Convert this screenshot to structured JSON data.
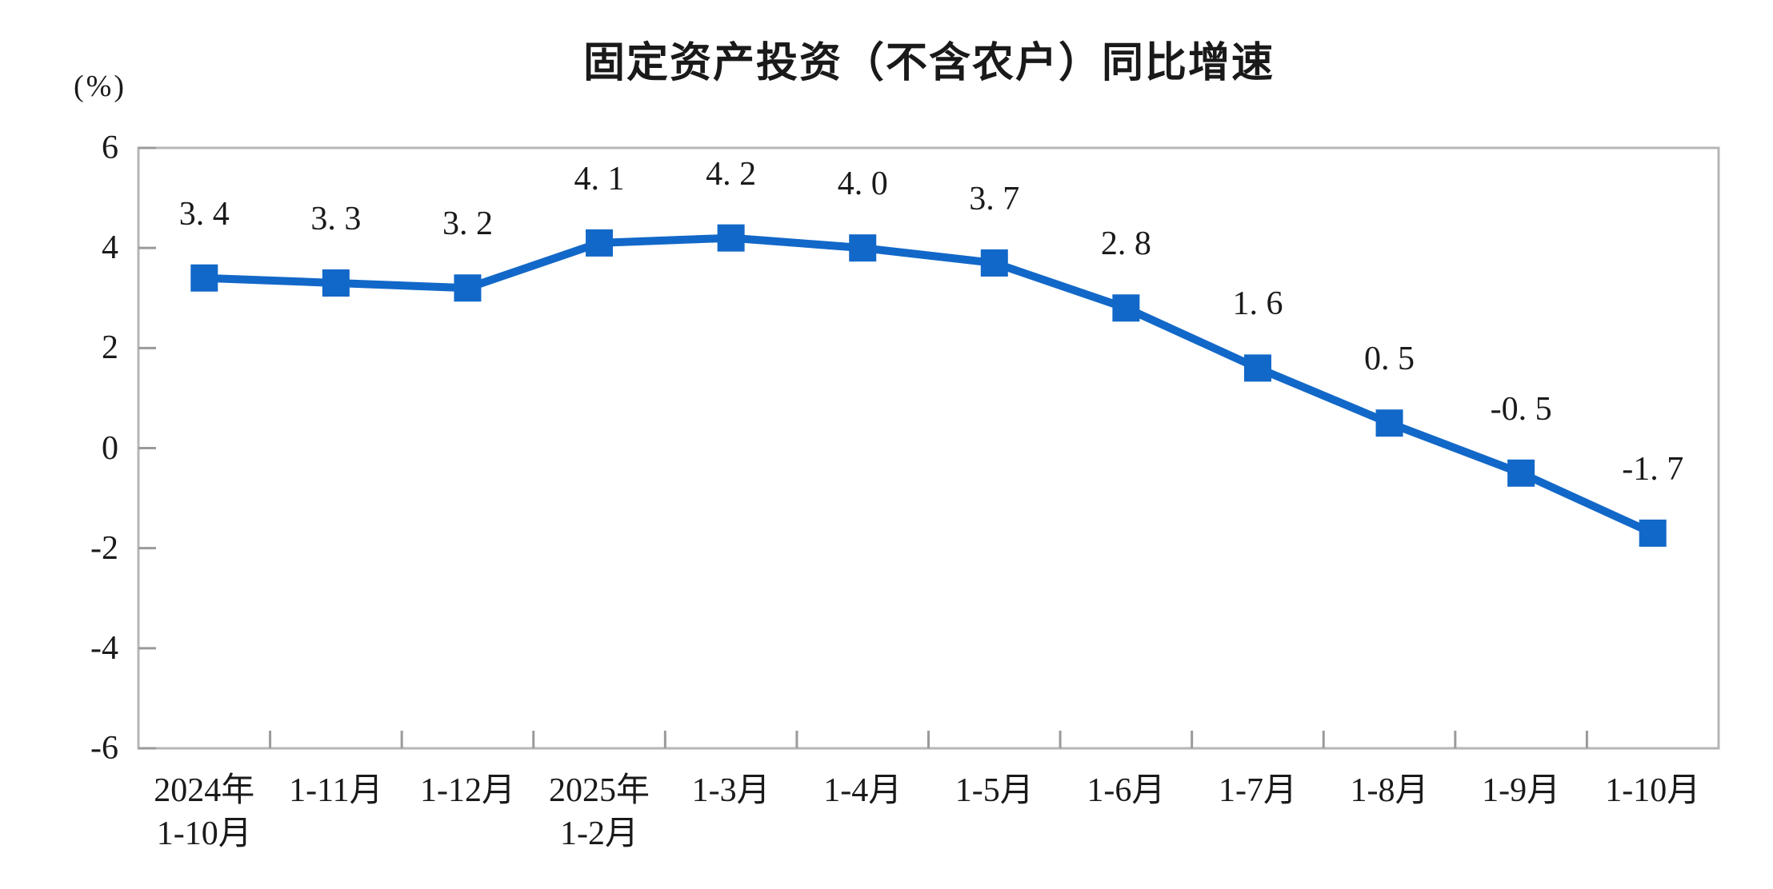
{
  "header": {
    "title": "固定资产投资（不含农户）同比增速",
    "unit_label": "(%)"
  },
  "chart_data": {
    "type": "line",
    "title": "固定资产投资（不含农户）同比增速",
    "ylabel": "(%)",
    "xlabel": "",
    "categories": [
      "2024年\n1-10月",
      "1-11月",
      "1-12月",
      "2025年\n1-2月",
      "1-3月",
      "1-4月",
      "1-5月",
      "1-6月",
      "1-7月",
      "1-8月",
      "1-9月",
      "1-10月"
    ],
    "values": [
      3.4,
      3.3,
      3.2,
      4.1,
      4.2,
      4.0,
      3.7,
      2.8,
      1.6,
      0.5,
      -0.5,
      -1.7
    ],
    "data_labels": [
      "3.4",
      "3.3",
      "3.2",
      "4.1",
      "4.2",
      "4.0",
      "3.7",
      "2.8",
      "1.6",
      "0.5",
      "-0.5",
      "-1.7"
    ],
    "ylim": [
      -6,
      6
    ],
    "yticks": [
      6,
      4,
      2,
      0,
      -2,
      -4,
      -6
    ],
    "grid": false,
    "legend": null,
    "marker": "square",
    "line_color": "#1268C8",
    "marker_color": "#1268C8",
    "axis_color": "#b6b6b6",
    "tick_color": "#9a9a9a",
    "text_color": "#1a1a1a"
  }
}
